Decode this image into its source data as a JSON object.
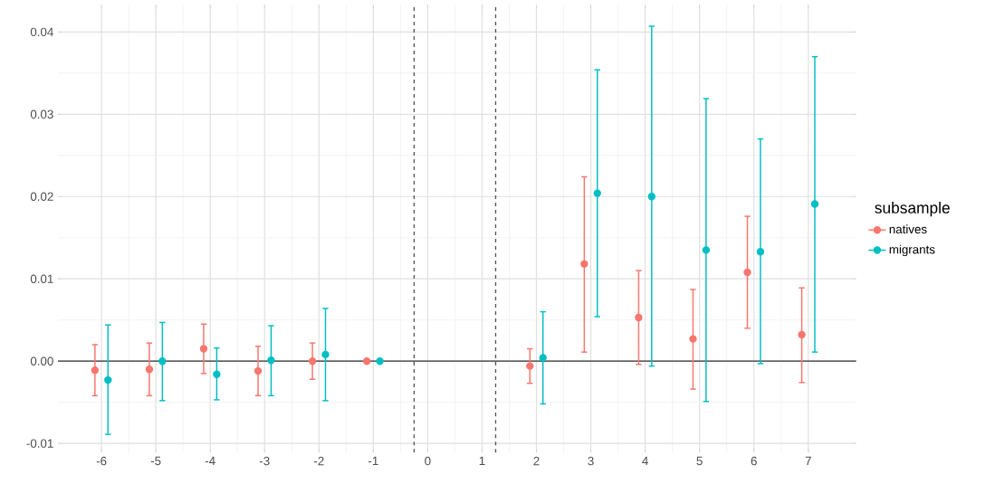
{
  "chart_data": {
    "type": "scatter",
    "legend_title": "subsample",
    "legend": "right",
    "grid": true,
    "marker": "circle",
    "xlim": [
      -6.8,
      7.88
    ],
    "ylim": [
      -0.0111,
      0.0433
    ],
    "xticks": [
      -6,
      -5,
      -4,
      -3,
      -2,
      -1,
      0,
      1,
      2,
      3,
      4,
      5,
      6,
      7
    ],
    "yticks": [
      -0.01,
      {
        "value": 0,
        "label": "0.00"
      },
      0.01,
      0.02,
      0.03,
      0.04
    ],
    "series": [
      {
        "name": "natives",
        "color": "#f8766d",
        "x": [
          -6.12,
          -5.12,
          -4.12,
          -3.12,
          -2.12,
          -1.12,
          1.88,
          2.88,
          3.88,
          4.88,
          5.88,
          6.88
        ],
        "values": [
          -0.0011,
          -0.001,
          0.0015,
          -0.0012,
          0,
          0,
          -0.0006,
          0.0118,
          0.0053,
          0.0027,
          0.0108,
          0.0032
        ],
        "errors": [
          [
            -0.0042,
            0.002
          ],
          [
            -0.0042,
            0.0022
          ],
          [
            -0.0015,
            0.0045
          ],
          [
            -0.0042,
            0.0018
          ],
          [
            -0.0022,
            0.0022
          ],
          null,
          [
            -0.0027,
            0.0015
          ],
          [
            0.0011,
            0.0224
          ],
          [
            -0.0004,
            0.011
          ],
          [
            -0.0034,
            0.0087
          ],
          [
            0.004,
            0.0176
          ],
          [
            -0.0026,
            0.0089
          ]
        ]
      },
      {
        "name": "migrants",
        "color": "#00bfc4",
        "x": [
          -5.88,
          -4.88,
          -3.88,
          -2.88,
          -1.88,
          -0.88,
          2.12,
          3.12,
          4.12,
          5.12,
          6.12,
          7.12
        ],
        "values": [
          -0.0023,
          0,
          -0.0016,
          0.0001,
          0.0008,
          0,
          0.0004,
          0.0204,
          0.02,
          0.0135,
          0.0133,
          0.0191
        ],
        "errors": [
          [
            -0.0089,
            0.0044
          ],
          [
            -0.0048,
            0.0047
          ],
          [
            -0.0047,
            0.0016
          ],
          [
            -0.0042,
            0.0043
          ],
          [
            -0.0048,
            0.0064
          ],
          null,
          [
            -0.0052,
            0.006
          ],
          [
            0.0054,
            0.0354
          ],
          [
            -0.0006,
            0.0407
          ],
          [
            -0.0049,
            0.0319
          ],
          [
            -0.0003,
            0.027
          ],
          [
            0.0011,
            0.037
          ]
        ]
      }
    ],
    "ref_lines": [
      {
        "axis": "y",
        "value": 0,
        "color": "#333333",
        "line_style": "solid"
      },
      {
        "axis": "x",
        "value": -0.25,
        "color": "#555555",
        "line_style": "dashed"
      },
      {
        "axis": "x",
        "value": 1.25,
        "color": "#555555",
        "line_style": "dashed"
      }
    ]
  }
}
